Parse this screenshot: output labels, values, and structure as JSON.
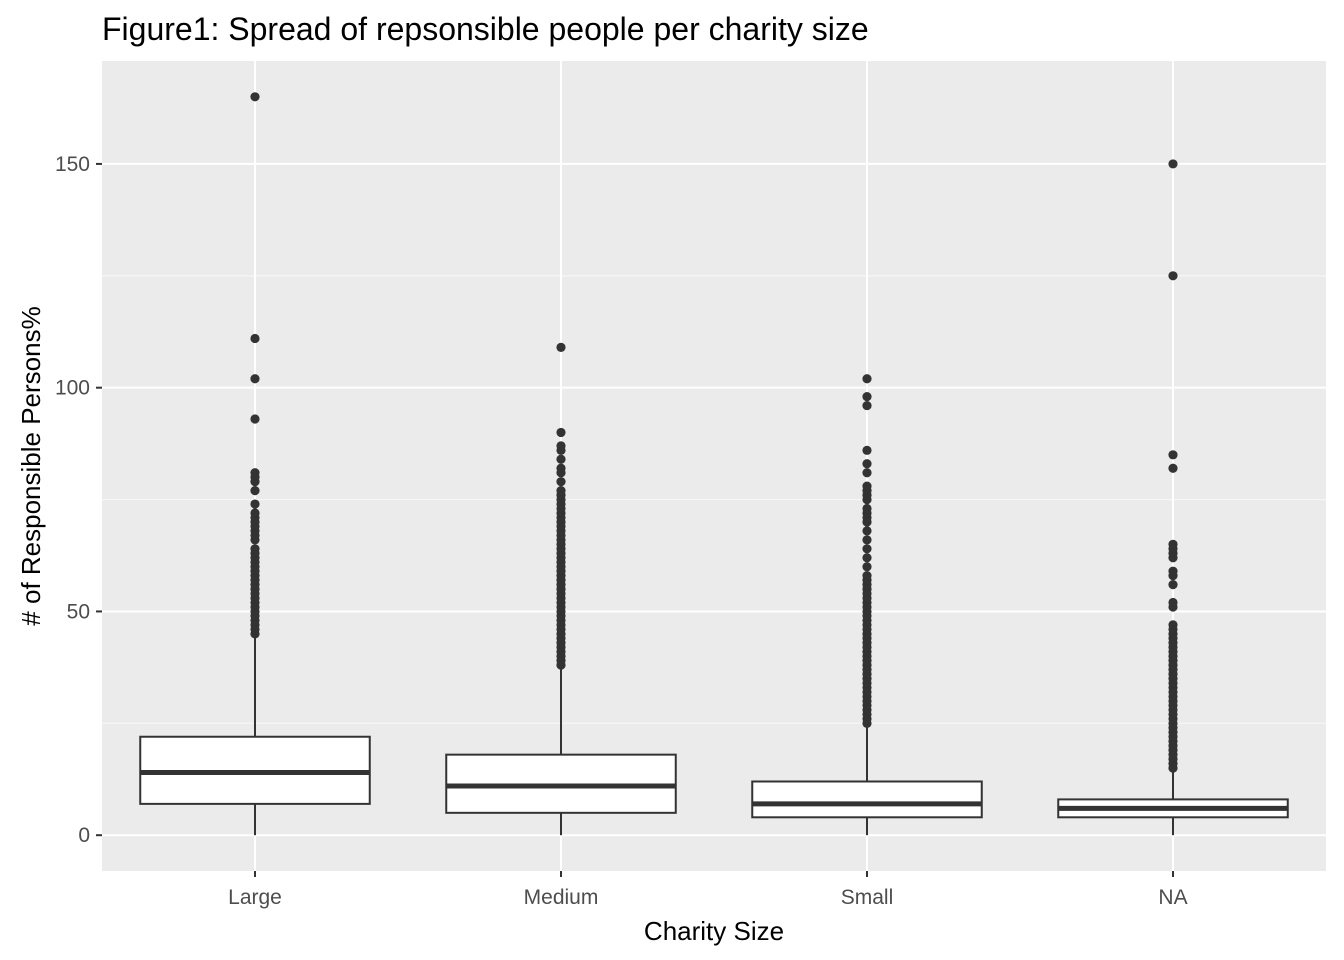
{
  "chart_data": {
    "type": "boxplot",
    "title": "Figure1: Spread of repsonsible people per charity size",
    "xlabel": "Charity Size",
    "ylabel": "# of Responsible Persons%",
    "categories": [
      "Large",
      "Medium",
      "Small",
      "NA"
    ],
    "ylim": [
      -8,
      173
    ],
    "yticks": [
      0,
      50,
      100,
      150
    ],
    "yticks_labels": [
      "0",
      "50",
      "100",
      "150"
    ],
    "grid": true,
    "legend": "none",
    "colors": {
      "panel": "#ebebeb",
      "grid_major": "#ffffff",
      "grid_minor": "#f7f7f7",
      "box_fill": "#ffffff",
      "box_line": "#333333",
      "outlier": "#333333",
      "tick_text": "#4d4d4d"
    },
    "boxes": [
      {
        "category": "Large",
        "whisker_low": 0,
        "q1": 7,
        "median": 14,
        "q3": 22,
        "whisker_high": 45,
        "outliers": [
          45,
          46,
          47,
          48,
          49,
          50,
          51,
          52,
          53,
          54,
          55,
          56,
          57,
          58,
          59,
          60,
          61,
          62,
          63,
          64,
          66,
          67,
          68,
          69,
          70,
          71,
          72,
          74,
          77,
          79,
          80,
          81,
          93,
          102,
          111,
          165
        ]
      },
      {
        "category": "Medium",
        "whisker_low": 0,
        "q1": 5,
        "median": 11,
        "q3": 18,
        "whisker_high": 38,
        "outliers": [
          38,
          39,
          40,
          41,
          42,
          43,
          44,
          45,
          46,
          47,
          48,
          49,
          50,
          51,
          52,
          53,
          54,
          55,
          56,
          57,
          58,
          59,
          60,
          61,
          62,
          63,
          64,
          65,
          66,
          67,
          68,
          69,
          70,
          71,
          72,
          73,
          74,
          75,
          76,
          77,
          79,
          81,
          82,
          84,
          86,
          87,
          90,
          109
        ]
      },
      {
        "category": "Small",
        "whisker_low": 0,
        "q1": 4,
        "median": 7,
        "q3": 12,
        "whisker_high": 25,
        "outliers": [
          25,
          26,
          27,
          28,
          29,
          30,
          31,
          32,
          33,
          34,
          35,
          36,
          37,
          38,
          39,
          40,
          41,
          42,
          43,
          44,
          45,
          46,
          47,
          48,
          49,
          50,
          51,
          52,
          53,
          54,
          55,
          56,
          57,
          58,
          60,
          62,
          64,
          66,
          68,
          70,
          71,
          72,
          73,
          75,
          76,
          77,
          78,
          81,
          83,
          86,
          96,
          98,
          102
        ]
      },
      {
        "category": "NA",
        "whisker_low": 0,
        "q1": 4,
        "median": 6,
        "q3": 8,
        "whisker_high": 15,
        "outliers": [
          15,
          16,
          17,
          18,
          19,
          20,
          21,
          22,
          23,
          24,
          25,
          26,
          27,
          28,
          29,
          30,
          31,
          32,
          33,
          34,
          35,
          36,
          37,
          38,
          39,
          40,
          41,
          42,
          43,
          44,
          45,
          46,
          47,
          51,
          52,
          56,
          58,
          59,
          62,
          63,
          64,
          65,
          82,
          85,
          125,
          150
        ]
      }
    ]
  }
}
